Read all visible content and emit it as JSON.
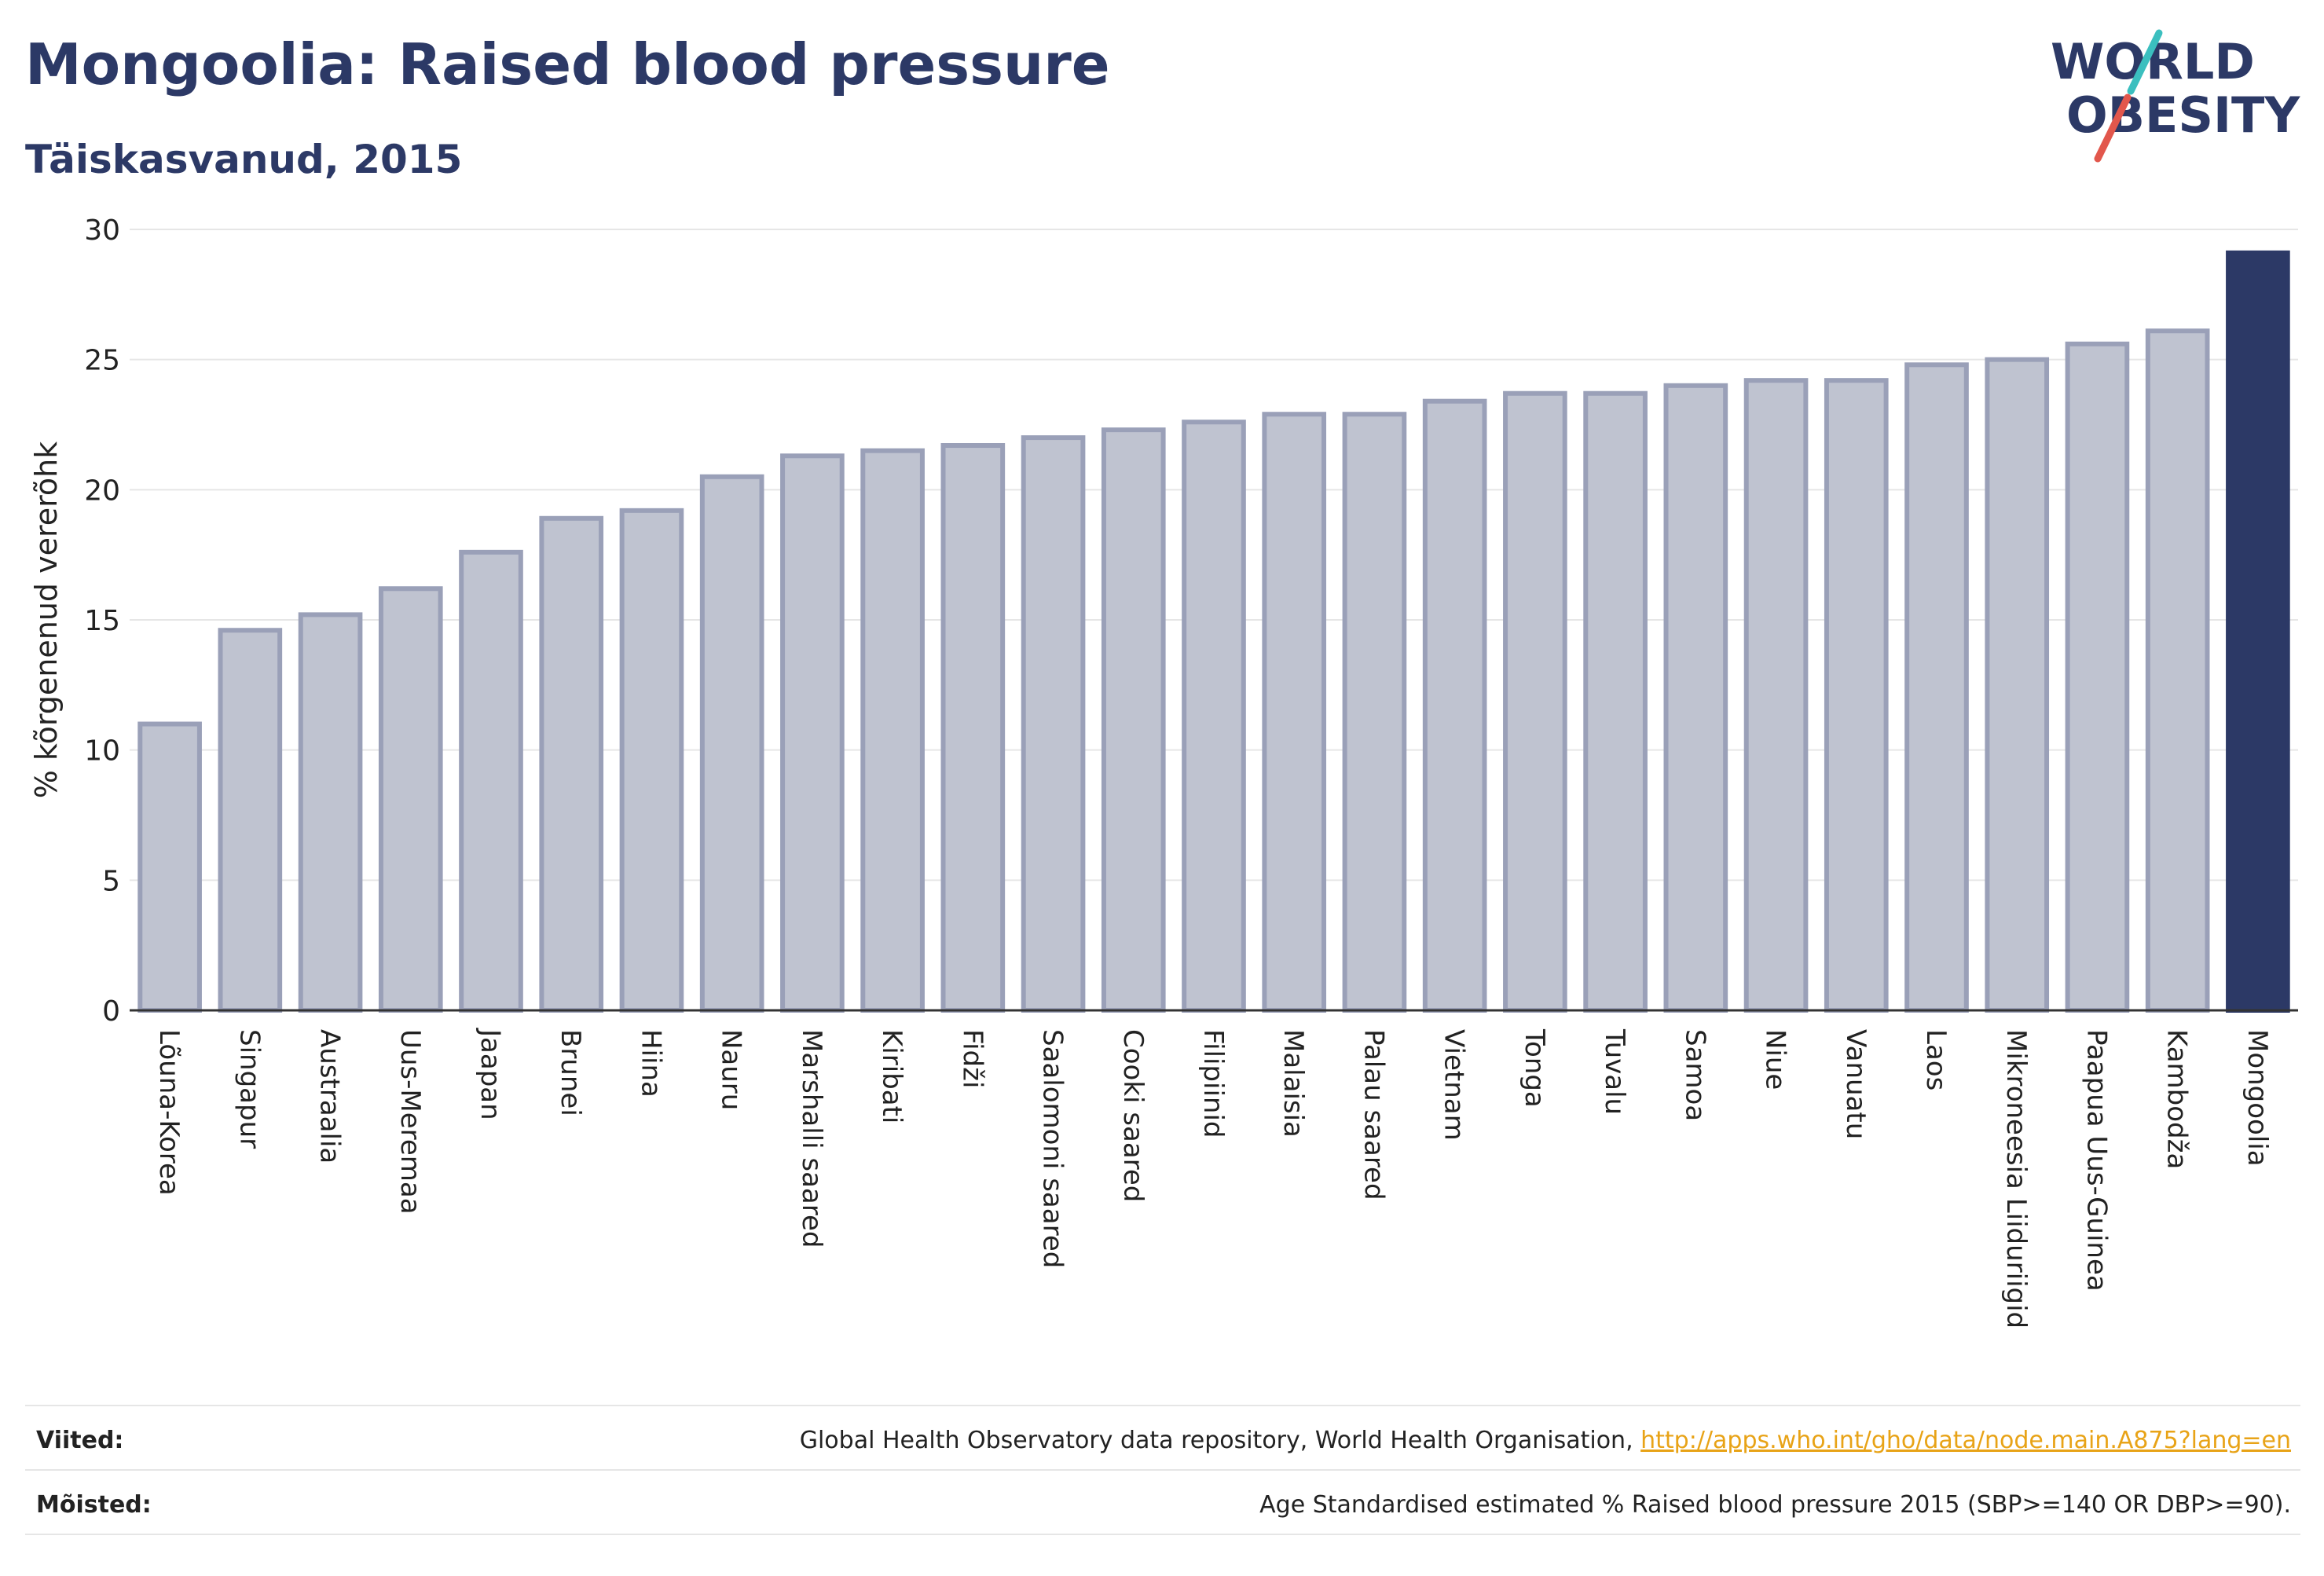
{
  "header": {
    "title": "Mongoolia: Raised blood pressure",
    "subtitle": "Täiskasvanud, 2015"
  },
  "logo": {
    "line1": "WORLD",
    "line2": "OBESITY",
    "colors": {
      "text": "#2c3966",
      "slash_top": "#3bbfbf",
      "slash_bottom": "#e2574c"
    }
  },
  "chart_data": {
    "type": "bar",
    "ylabel": "% kõrgenenud vererõhk",
    "ylim": [
      0,
      30
    ],
    "yticks": [
      0,
      5,
      10,
      15,
      20,
      25,
      30
    ],
    "grid": true,
    "categories": [
      "Lõuna-Korea",
      "Singapur",
      "Austraalia",
      "Uus-Meremaa",
      "Jaapan",
      "Brunei",
      "Hiina",
      "Nauru",
      "Marshalli saared",
      "Kiribati",
      "Fidži",
      "Saalomoni saared",
      "Cooki saared",
      "Filipiinid",
      "Malaisia",
      "Palau saared",
      "Vietnam",
      "Tonga",
      "Tuvalu",
      "Samoa",
      "Niue",
      "Vanuatu",
      "Laos",
      "Mikroneesia Liiduriigid",
      "Paapua Uus-Guinea",
      "Kambodža",
      "Mongoolia"
    ],
    "values": [
      11.0,
      14.6,
      15.2,
      16.2,
      17.6,
      18.9,
      19.2,
      20.5,
      21.3,
      21.5,
      21.7,
      22.0,
      22.3,
      22.6,
      22.9,
      22.9,
      23.4,
      23.7,
      23.7,
      24.0,
      24.2,
      24.2,
      24.8,
      25.0,
      25.6,
      26.1,
      29.1
    ],
    "highlight": "Mongoolia",
    "colors": {
      "bar": "#bfc3d0",
      "bar_border": "#9aa0b8",
      "highlight": "#2c3966",
      "grid": "#e6e6e6",
      "axis": "#333333"
    }
  },
  "footer": {
    "sources_label": "Viited:",
    "sources_text": "Global Health Observatory data repository, World Health Organisation, ",
    "sources_link": "http://apps.who.int/gho/data/node.main.A875?lang=en",
    "definitions_label": "Mõisted:",
    "definitions_text": "Age Standardised estimated % Raised blood pressure 2015 (SBP>=140 OR DBP>=90)."
  }
}
